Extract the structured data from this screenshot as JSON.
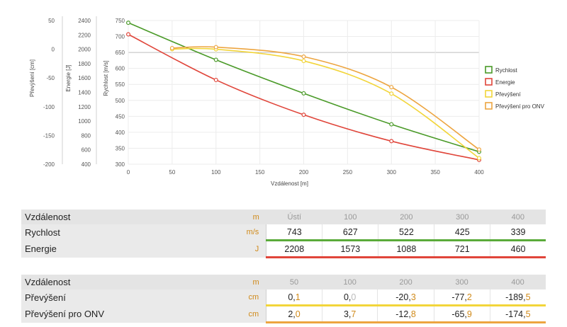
{
  "chart_data": {
    "type": "line",
    "xlabel": "Vzdálenost [m]",
    "x_ticks": [
      0,
      50,
      100,
      150,
      200,
      250,
      300,
      350,
      400
    ],
    "xlim": [
      0,
      400
    ],
    "y_axes": [
      {
        "label": "Převýšení [cm]",
        "ticks": [
          "50",
          "0",
          "-50",
          "-100",
          "-150",
          "-200"
        ],
        "ylim": [
          -200,
          50
        ]
      },
      {
        "label": "Energie [J]",
        "ticks": [
          "2400",
          "2200",
          "2000",
          "1800",
          "1600",
          "1400",
          "1200",
          "1000",
          "800",
          "600",
          "400"
        ],
        "ylim": [
          400,
          2400
        ]
      },
      {
        "label": "Rychlost [m/s]",
        "ticks": [
          "750",
          "700",
          "650",
          "600",
          "550",
          "500",
          "450",
          "400",
          "350",
          "300"
        ],
        "ylim": [
          300,
          750
        ]
      }
    ],
    "series": [
      {
        "name": "Rychlost",
        "color": "#4a9a28",
        "axis": 2,
        "x": [
          0,
          100,
          200,
          300,
          400
        ],
        "values": [
          743,
          627,
          522,
          425,
          339
        ]
      },
      {
        "name": "Energie",
        "color": "#e0453a",
        "axis": 1,
        "x": [
          0,
          100,
          200,
          300,
          400
        ],
        "values": [
          2208,
          1573,
          1088,
          721,
          460
        ]
      },
      {
        "name": "Převýšení",
        "color": "#f2d53a",
        "axis": 0,
        "x": [
          50,
          100,
          200,
          300,
          400
        ],
        "values": [
          0.1,
          0.0,
          -20.3,
          -77.2,
          -189.5
        ]
      },
      {
        "name": "Převýšení pro ONV",
        "color": "#eda540",
        "axis": 0,
        "x": [
          50,
          100,
          200,
          300,
          400
        ],
        "values": [
          2.0,
          3.7,
          -12.8,
          -65.9,
          -174.5
        ]
      }
    ],
    "legend": "right",
    "grid": true
  },
  "table1": {
    "header": {
      "label": "Vzdálenost",
      "unit": "m",
      "cols": [
        "Ústí",
        "100",
        "200",
        "300",
        "400"
      ]
    },
    "rows": [
      {
        "label": "Rychlost",
        "unit": "m/s",
        "values": [
          "743",
          "627",
          "522",
          "425",
          "339"
        ]
      },
      {
        "label": "Energie",
        "unit": "J",
        "values": [
          "2208",
          "1573",
          "1088",
          "721",
          "460"
        ]
      }
    ]
  },
  "table2": {
    "header": {
      "label": "Vzdálenost",
      "unit": "m",
      "cols": [
        "50",
        "100",
        "200",
        "300",
        "400"
      ]
    },
    "rows": [
      {
        "label": "Převýšení",
        "unit": "cm",
        "values": [
          {
            "int": "0,",
            "dec": "1"
          },
          {
            "int": "0,",
            "dec": "0"
          },
          {
            "int": "-20,",
            "dec": "3"
          },
          {
            "int": "-77,",
            "dec": "2"
          },
          {
            "int": "-189,",
            "dec": "5"
          }
        ]
      },
      {
        "label": "Převýšení pro ONV",
        "unit": "cm",
        "values": [
          {
            "int": "2,",
            "dec": "0"
          },
          {
            "int": "3,",
            "dec": "7"
          },
          {
            "int": "-12,",
            "dec": "8"
          },
          {
            "int": "-65,",
            "dec": "9"
          },
          {
            "int": "-174,",
            "dec": "5"
          }
        ]
      }
    ]
  }
}
